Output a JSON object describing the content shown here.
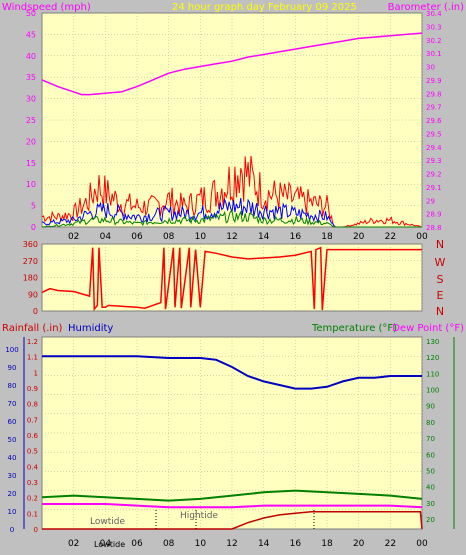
{
  "header": {
    "left_title": "Windspeed (mph)",
    "center_title": "24 hour graph day   February 09 2025",
    "right_title": "Barometer (.in)"
  },
  "x_ticks": [
    "02",
    "04",
    "06",
    "08",
    "10",
    "12",
    "14",
    "16",
    "18",
    "20",
    "22",
    "00"
  ],
  "colors": {
    "panel": "#ffffc0",
    "grid": "#b0b090",
    "wind": "#ff0000",
    "wind_avg": "#0000ff",
    "wind_min": "#008000",
    "barometer": "#ff00ff",
    "direction": "#ff0000",
    "humidity": "#0000c0",
    "temperature": "#008000",
    "dewpoint": "#ff00ff",
    "rain": "#c00000"
  },
  "wind_panel": {
    "left_axis": [
      "0",
      "5",
      "10",
      "15",
      "20",
      "25",
      "30",
      "35",
      "40",
      "45",
      "50"
    ],
    "right_axis": [
      "28.8",
      "28.9",
      "29",
      "29.1",
      "29.2",
      "29.3",
      "29.4",
      "29.5",
      "29.6",
      "29.7",
      "29.8",
      "29.9",
      "30",
      "30.1",
      "30.2",
      "30.3",
      "30.4"
    ]
  },
  "direction_panel": {
    "left_axis": [
      "0",
      "90",
      "180",
      "270",
      "360"
    ],
    "right_letters": [
      "N",
      "W",
      "S",
      "E",
      "N"
    ]
  },
  "bottom_panel": {
    "labels": {
      "rainfall": "Rainfall (.in)",
      "humidity": "Humidity",
      "temperature": "Temperature (°F)",
      "dewpoint": "Dew Point (°F)"
    },
    "humidity_axis": [
      "0",
      "10",
      "20",
      "30",
      "40",
      "50",
      "60",
      "70",
      "80",
      "90",
      "100"
    ],
    "rain_axis": [
      "0",
      "0.1",
      "0.2",
      "0.3",
      "0.4",
      "0.5",
      "0.6",
      "0.7",
      "0.8",
      "0.9",
      "1",
      "1.1",
      "1.2"
    ],
    "temp_axis": [
      "20",
      "30",
      "40",
      "50",
      "60",
      "70",
      "80",
      "90",
      "100",
      "110",
      "120",
      "130"
    ],
    "tides": {
      "lowtide_label": "Lowtide",
      "hightide_label": "Hightide",
      "lowtide_bottom_label": "Lowtide"
    }
  },
  "chart_data": [
    {
      "type": "line",
      "title": "24 hour graph day   February 09 2025",
      "xlabel": "",
      "ylabel": "Windspeed (mph)",
      "y2label": "Barometer (.in)",
      "x_range_hours": [
        0,
        24
      ],
      "ylim": [
        0,
        50
      ],
      "y2lim": [
        28.8,
        30.4
      ],
      "grid": true,
      "series": [
        {
          "name": "Barometer (.in)",
          "axis": "right",
          "x": [
            0,
            1,
            2,
            2.5,
            3,
            4,
            5,
            6,
            7,
            8,
            9,
            10,
            11,
            12,
            13,
            14,
            15,
            16,
            17,
            18,
            19,
            20,
            21,
            22,
            23,
            24
          ],
          "values": [
            29.9,
            29.85,
            29.81,
            29.79,
            29.79,
            29.8,
            29.81,
            29.85,
            29.9,
            29.95,
            29.98,
            30.0,
            30.02,
            30.04,
            30.07,
            30.09,
            30.11,
            30.13,
            30.15,
            30.17,
            30.19,
            30.21,
            30.22,
            30.23,
            30.24,
            30.25
          ]
        },
        {
          "name": "Wind gust",
          "axis": "left",
          "x": [
            0,
            1,
            2,
            3,
            3.5,
            4,
            5,
            6,
            7,
            8,
            9,
            10,
            11,
            12,
            12.5,
            13,
            14,
            15,
            16,
            17,
            18,
            18.5,
            19,
            20,
            21,
            22,
            23,
            24
          ],
          "values": [
            3,
            3,
            4,
            8,
            12,
            10,
            7,
            6,
            6,
            8,
            6,
            8,
            10,
            14,
            18,
            15,
            10,
            9,
            8,
            7,
            6,
            0,
            0,
            1,
            2,
            2,
            1,
            0
          ]
        },
        {
          "name": "Wind average",
          "axis": "left",
          "x": [
            0,
            2,
            3,
            4,
            6,
            8,
            10,
            12,
            13,
            14,
            16,
            18,
            18.5,
            24
          ],
          "values": [
            1,
            2,
            4,
            5,
            3,
            4,
            4,
            6,
            6,
            5,
            4,
            3,
            0,
            0
          ]
        },
        {
          "name": "Wind lull",
          "axis": "left",
          "x": [
            0,
            2,
            3,
            4,
            6,
            8,
            10,
            12,
            13,
            14,
            16,
            18,
            18.5,
            24
          ],
          "values": [
            0,
            1,
            2,
            2,
            1,
            2,
            2,
            3,
            3,
            2,
            2,
            1,
            0,
            0
          ]
        }
      ]
    },
    {
      "type": "line",
      "title": "",
      "xlabel": "",
      "ylabel": "",
      "x_range_hours": [
        0,
        24
      ],
      "ylim": [
        0,
        360
      ],
      "grid": true,
      "series": [
        {
          "name": "Wind direction",
          "x": [
            0,
            0.5,
            1,
            2,
            3,
            3.2,
            3.3,
            3.5,
            3.6,
            3.8,
            4.0,
            4.2,
            5,
            6,
            6.5,
            7,
            7.5,
            7.7,
            7.8,
            8.3,
            8.4,
            8.7,
            8.8,
            9.3,
            9.4,
            9.7,
            10.0,
            10.3,
            11,
            12,
            13,
            14,
            15,
            16,
            17,
            17.2,
            17.3,
            17.6,
            17.7,
            18,
            24
          ],
          "values": [
            100,
            120,
            110,
            105,
            80,
            340,
            10,
            30,
            340,
            20,
            20,
            30,
            25,
            20,
            15,
            30,
            45,
            340,
            10,
            340,
            20,
            340,
            15,
            340,
            20,
            330,
            20,
            320,
            310,
            290,
            280,
            285,
            290,
            300,
            320,
            10,
            330,
            340,
            5,
            330,
            330
          ]
        }
      ]
    },
    {
      "type": "line",
      "title": "",
      "xlabel": "",
      "ylabel": "Humidity",
      "x_range_hours": [
        0,
        24
      ],
      "ylim": [
        0,
        100
      ],
      "y_rain_lim": [
        0,
        1.2
      ],
      "y_temp_lim": [
        15,
        130
      ],
      "grid": true,
      "series": [
        {
          "name": "Humidity",
          "axis": "humidity",
          "x": [
            0,
            2,
            4,
            6,
            8,
            10,
            11,
            12,
            13,
            14,
            15,
            16,
            17,
            18,
            19,
            20,
            21,
            22,
            23,
            24
          ],
          "values": [
            96,
            96,
            96,
            96,
            95,
            95,
            94,
            90,
            85,
            82,
            80,
            78,
            78,
            79,
            82,
            84,
            84,
            85,
            85,
            85
          ]
        },
        {
          "name": "Temperature (°F)",
          "axis": "temp",
          "x": [
            0,
            2,
            4,
            6,
            8,
            10,
            12,
            14,
            16,
            18,
            20,
            22,
            24
          ],
          "values": [
            34,
            35,
            34,
            33,
            32,
            33,
            35,
            37,
            38,
            37,
            36,
            35,
            33
          ]
        },
        {
          "name": "Dew Point (°F)",
          "axis": "temp",
          "x": [
            0,
            2,
            4,
            6,
            8,
            10,
            12,
            14,
            16,
            18,
            20,
            22,
            24
          ],
          "values": [
            30,
            30,
            30,
            29,
            28,
            28,
            28,
            29,
            29,
            29,
            29,
            29,
            28
          ]
        },
        {
          "name": "Rainfall (.in)",
          "axis": "rain",
          "x": [
            0,
            12,
            13,
            14,
            15,
            16,
            17,
            18,
            19,
            20,
            21,
            22,
            23,
            23.9,
            24
          ],
          "values": [
            0,
            0,
            0.04,
            0.07,
            0.09,
            0.1,
            0.11,
            0.11,
            0.11,
            0.11,
            0.11,
            0.11,
            0.11,
            0.11,
            0.0
          ]
        }
      ]
    }
  ]
}
